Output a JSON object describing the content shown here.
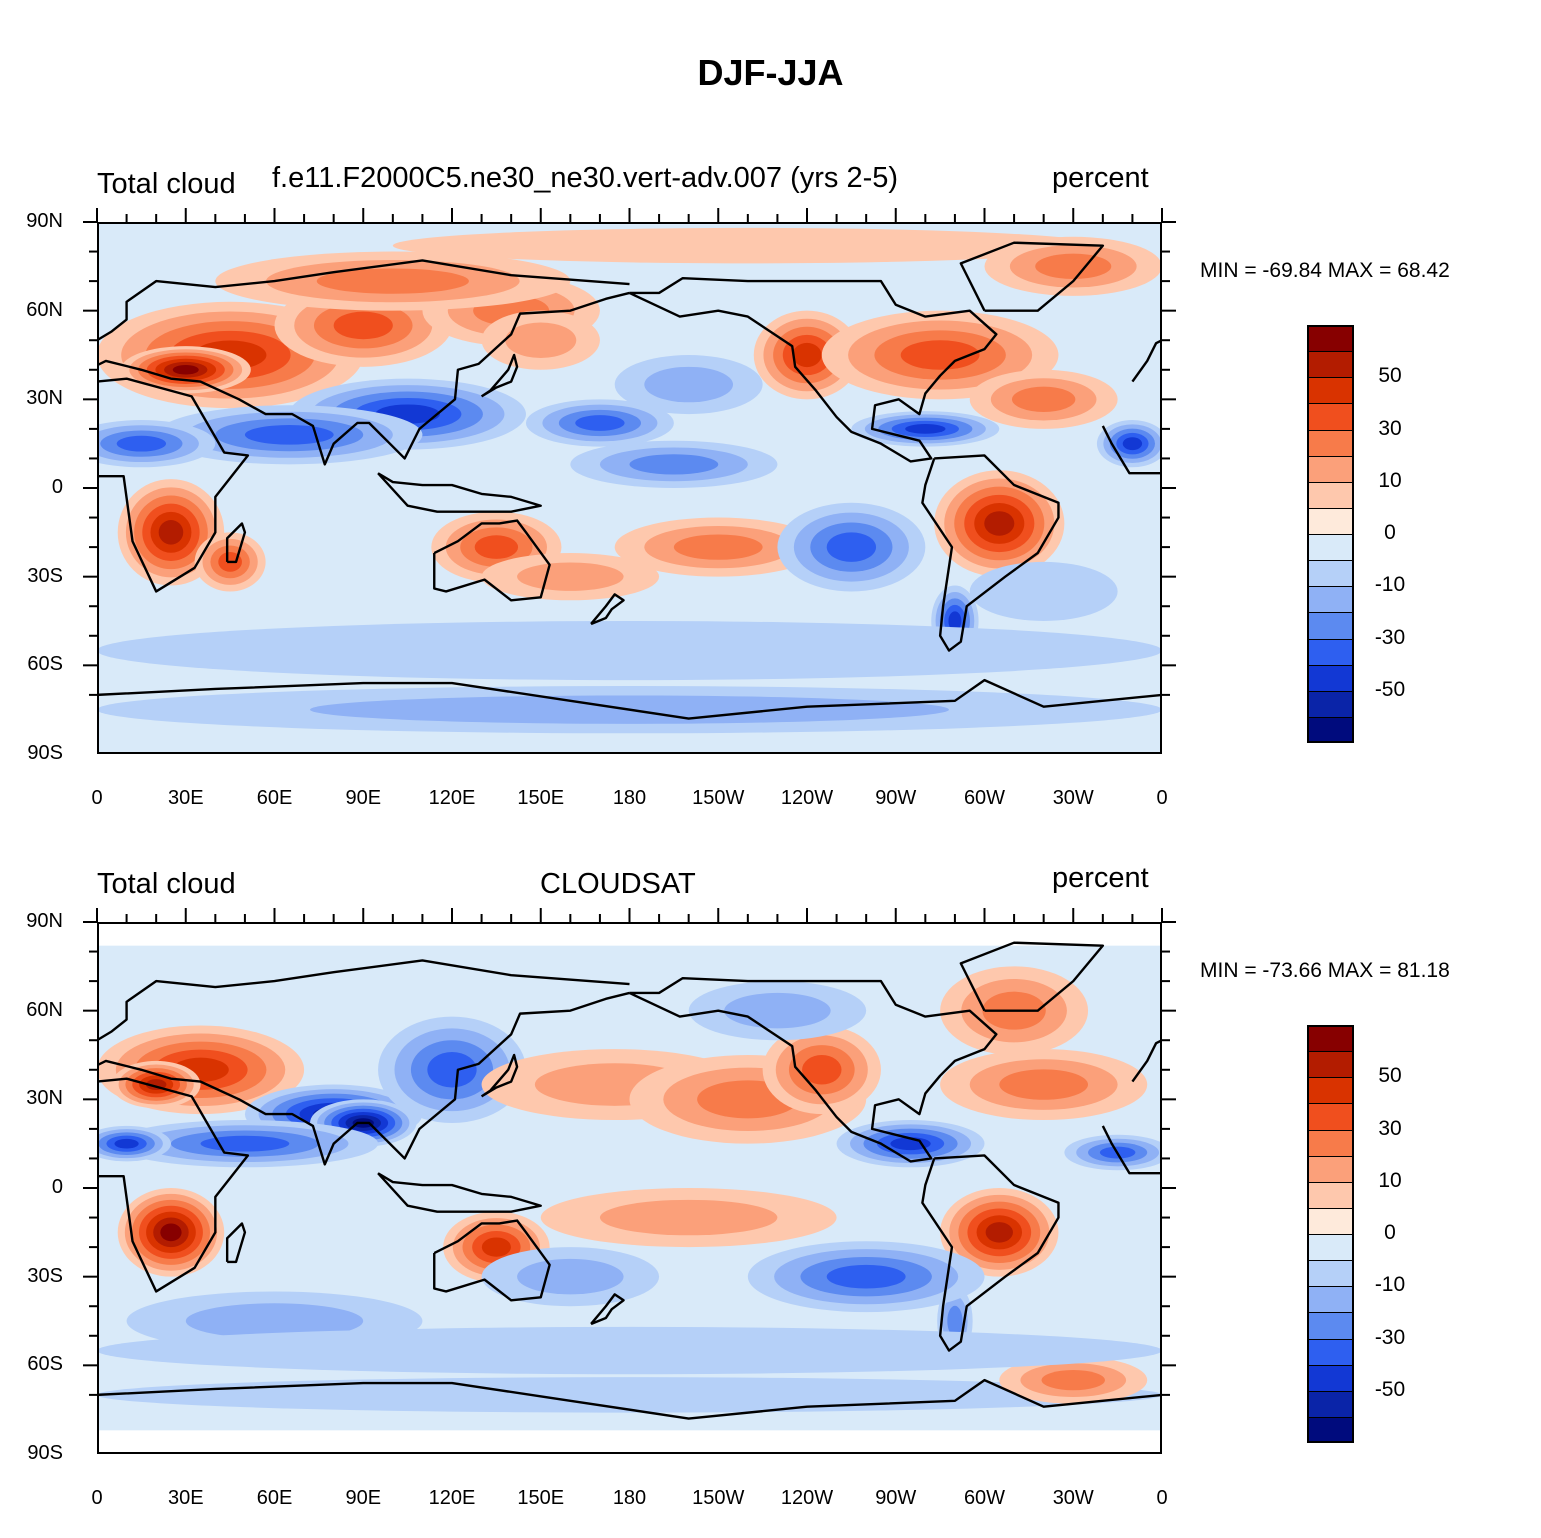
{
  "main_title": "DJF-JJA",
  "panels": [
    {
      "left_label": "Total cloud",
      "center_label": "f.e11.F2000C5.ne30_ne30.vert-adv.007 (yrs 2-5)",
      "right_label": "percent",
      "minmax": "MIN = -69.84 MAX =  68.42"
    },
    {
      "left_label": "Total cloud",
      "center_label": "CLOUDSAT",
      "right_label": "percent",
      "minmax": "MIN = -73.66 MAX =  81.18"
    }
  ],
  "chart_data": [
    {
      "type": "heatmap",
      "title": "DJF-JJA",
      "subtitle_left": "Total cloud",
      "subtitle_center": "f.e11.F2000C5.ne30_ne30.vert-adv.007 (yrs 2-5)",
      "subtitle_right": "percent",
      "min": -69.84,
      "max": 68.42,
      "x_ticks": [
        "0",
        "30E",
        "60E",
        "90E",
        "120E",
        "150E",
        "180",
        "150W",
        "120W",
        "90W",
        "60W",
        "30W",
        "0"
      ],
      "y_ticks": [
        "90N",
        "60N",
        "30N",
        "0",
        "30S",
        "60S",
        "90S"
      ],
      "xlim": [
        0,
        360
      ],
      "ylim": [
        -90,
        90
      ],
      "colorbar_labels": [
        "50",
        "30",
        "10",
        "0",
        "-10",
        "-30",
        "-50"
      ]
    },
    {
      "type": "heatmap",
      "title": "DJF-JJA",
      "subtitle_left": "Total cloud",
      "subtitle_center": "CLOUDSAT",
      "subtitle_right": "percent",
      "min": -73.66,
      "max": 81.18,
      "x_ticks": [
        "0",
        "30E",
        "60E",
        "90E",
        "120E",
        "150E",
        "180",
        "150W",
        "120W",
        "90W",
        "60W",
        "30W",
        "0"
      ],
      "y_ticks": [
        "90N",
        "60N",
        "30N",
        "0",
        "30S",
        "60S",
        "90S"
      ],
      "xlim": [
        0,
        360
      ],
      "ylim": [
        -90,
        90
      ],
      "colorbar_labels": [
        "50",
        "30",
        "10",
        "0",
        "-10",
        "-30",
        "-50"
      ]
    }
  ],
  "colorbar_colors": [
    "#870000",
    "#b31c00",
    "#d93300",
    "#f04f1e",
    "#f77b4a",
    "#fba07a",
    "#fec8ad",
    "#feeadb",
    "#d9eaf9",
    "#b5d0f8",
    "#8fb1f5",
    "#5c8af0",
    "#2e5ff0",
    "#1238d4",
    "#0a24a8",
    "#000b7d"
  ],
  "x_tick_labels": [
    "0",
    "30E",
    "60E",
    "90E",
    "120E",
    "150E",
    "180",
    "150W",
    "120W",
    "90W",
    "60W",
    "30W",
    "0"
  ],
  "y_tick_labels": [
    "90N",
    "60N",
    "30N",
    "0",
    "30S",
    "60S",
    "90S"
  ],
  "colorbar_labels": [
    "50",
    "30",
    "10",
    "0",
    "-10",
    "-30",
    "-50"
  ]
}
